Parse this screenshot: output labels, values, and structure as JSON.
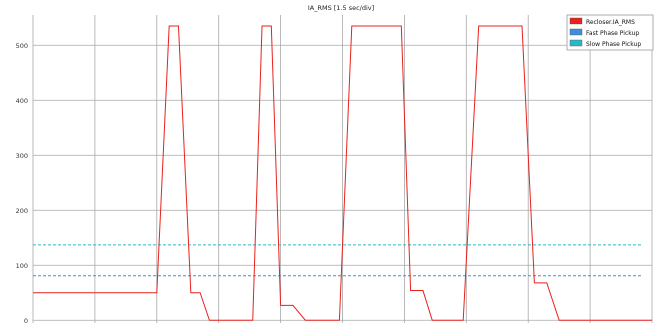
{
  "chart_data": {
    "type": "line",
    "title": "IA_RMS [1.5 sec/div]",
    "xlabel": "",
    "ylabel": "",
    "ylim": [
      -5,
      555
    ],
    "y_ticks": [
      0,
      100,
      200,
      300,
      400,
      500
    ],
    "x_range": [
      0,
      10
    ],
    "x_divisions": 10,
    "grid": true,
    "legend_position": "top-right",
    "series": [
      {
        "name": "Recloser.IA_RMS",
        "color": "#e8211d",
        "style": "solid",
        "points": [
          [
            0,
            50
          ],
          [
            2.0,
            50
          ],
          [
            2.2,
            535
          ],
          [
            2.35,
            535
          ],
          [
            2.55,
            50
          ],
          [
            2.7,
            50
          ],
          [
            2.85,
            0
          ],
          [
            3.55,
            0
          ],
          [
            3.7,
            535
          ],
          [
            3.85,
            535
          ],
          [
            4.0,
            27
          ],
          [
            4.2,
            27
          ],
          [
            4.4,
            0
          ],
          [
            4.95,
            0
          ],
          [
            5.15,
            535
          ],
          [
            5.95,
            535
          ],
          [
            6.1,
            54
          ],
          [
            6.3,
            54
          ],
          [
            6.45,
            0
          ],
          [
            6.95,
            0
          ],
          [
            7.2,
            535
          ],
          [
            7.9,
            535
          ],
          [
            8.1,
            68
          ],
          [
            8.3,
            68
          ],
          [
            8.5,
            0
          ],
          [
            10.0,
            0
          ]
        ]
      },
      {
        "name": "Fast Phase Pickup",
        "color": "#3f8fd6",
        "style": "dashed",
        "value": 81
      },
      {
        "name": "Slow Phase Pickup",
        "color": "#2ab8c8",
        "style": "dashed",
        "value": 137
      }
    ]
  }
}
